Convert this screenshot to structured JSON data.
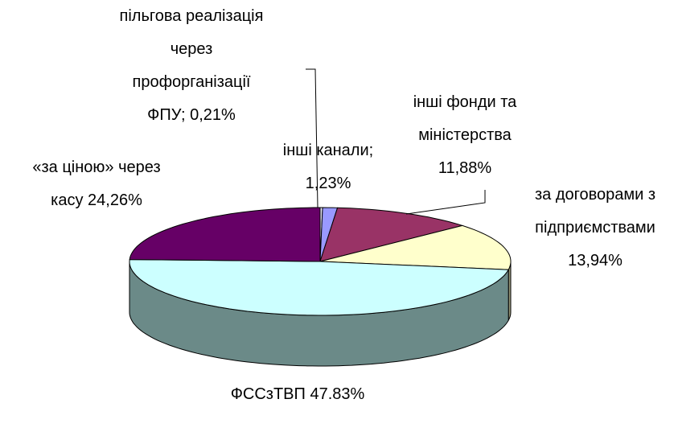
{
  "chart_data": {
    "type": "pie3d",
    "categories": [
      "пільгова реалізація через профорганізації ФПУ;",
      "інші канали;",
      "інші фонди та міністерства",
      "за договорами з підприємствами",
      "ФССзТВП",
      "«за ціною» через касу"
    ],
    "values": [
      0.21,
      1.23,
      11.88,
      13.94,
      47.83,
      24.26
    ],
    "value_labels": [
      "0,21%",
      "1,23%",
      "11,88%",
      "13,94%",
      "47.83%",
      "24,26%"
    ],
    "colors": [
      "#e8e8f8",
      "#9999ff",
      "#993366",
      "#ffffcc",
      "#ccffff",
      "#660066"
    ],
    "side_colors": [
      "#a0a0b0",
      "#6666b0",
      "#66223f",
      "#99997a",
      "#6b8a88",
      "#3d003d"
    ]
  }
}
